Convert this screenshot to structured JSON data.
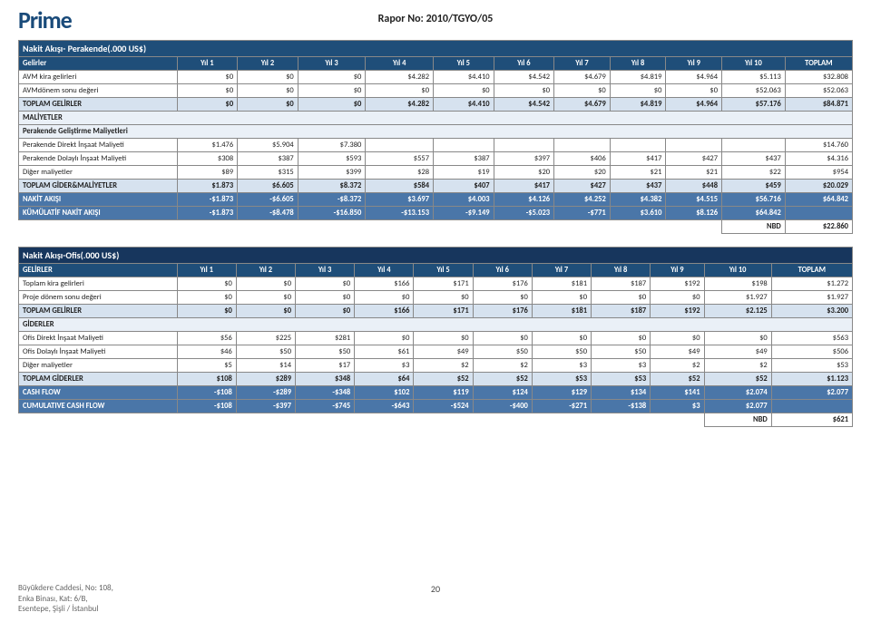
{
  "brand": "Prime",
  "reportNo": "Rapor No: 2010/TGYO/05",
  "pageNum": "20",
  "footer": {
    "line1": "Büyükdere Caddesi, No: 108,",
    "line2": "Enka Binası, Kat: 6/B,",
    "line3": "Esentepe, Şişli / İstanbul"
  },
  "table1": {
    "title": "Nakit Akışı- Perakende(.000 US$)",
    "cols": [
      "Gelirler",
      "Yıl 1",
      "Yıl 2",
      "Yıl 3",
      "Yıl 4",
      "Yıl 5",
      "Yıl 6",
      "Yıl 7",
      "Yıl 8",
      "Yıl 9",
      "Yıl 10",
      "TOPLAM"
    ],
    "rows": [
      {
        "label": "AVM kira gelirleri",
        "vals": [
          "$0",
          "$0",
          "$0",
          "$4.282",
          "$4.410",
          "$4.542",
          "$4.679",
          "$4.819",
          "$4.964",
          "$5.113",
          "$32.808"
        ]
      },
      {
        "label": "AVMdönem sonu değeri",
        "vals": [
          "$0",
          "$0",
          "$0",
          "$0",
          "$0",
          "$0",
          "$0",
          "$0",
          "$0",
          "$52.063",
          "$52.063"
        ]
      }
    ],
    "totalGelir": {
      "label": "TOPLAM GELİRLER",
      "vals": [
        "$0",
        "$0",
        "$0",
        "$4.282",
        "$4.410",
        "$4.542",
        "$4.679",
        "$4.819",
        "$4.964",
        "$57.176",
        "$84.871"
      ]
    },
    "maliyetlerLabel": "MALİYETLER",
    "maliyetSub": "Perakende Geliştirme Maliyetleri",
    "maliyetRows": [
      {
        "label": "Perakende Direkt İnşaat Maliyeti",
        "vals": [
          "$1.476",
          "$5.904",
          "$7.380",
          "",
          "",
          "",
          "",
          "",
          "",
          "",
          "$14.760"
        ]
      },
      {
        "label": "Perakende Dolaylı İnşaat Maliyeti",
        "vals": [
          "$308",
          "$387",
          "$593",
          "$557",
          "$387",
          "$397",
          "$406",
          "$417",
          "$427",
          "$437",
          "$4.316"
        ]
      },
      {
        "label": "Diğer maliyetler",
        "vals": [
          "$89",
          "$315",
          "$399",
          "$28",
          "$19",
          "$20",
          "$20",
          "$21",
          "$21",
          "$22",
          "$954"
        ]
      }
    ],
    "totalGider": {
      "label": "TOPLAM GİDER&MALİYETLER",
      "vals": [
        "$1.873",
        "$6.605",
        "$8.372",
        "$584",
        "$407",
        "$417",
        "$427",
        "$437",
        "$448",
        "$459",
        "$20.029"
      ]
    },
    "nakit": {
      "label": "NAKİT AKIŞI",
      "vals": [
        "-$1.873",
        "-$6.605",
        "-$8.372",
        "$3.697",
        "$4.003",
        "$4.126",
        "$4.252",
        "$4.382",
        "$4.515",
        "$56.716",
        "$64.842"
      ]
    },
    "kumul": {
      "label": "KÜMÜLATİF NAKİT AKIŞI",
      "vals": [
        "-$1.873",
        "-$8.478",
        "-$16.850",
        "-$13.153",
        "-$9.149",
        "-$5.023",
        "-$771",
        "$3.610",
        "$8.126",
        "$64.842",
        ""
      ]
    },
    "nbd": {
      "label": "NBD",
      "val": "$22.860"
    }
  },
  "table2": {
    "title": "Nakit Akışı-Ofis(.000 US$)",
    "cols": [
      "GELİRLER",
      "Yıl 1",
      "Yıl 2",
      "Yıl 3",
      "Yıl 4",
      "Yıl 5",
      "Yıl 6",
      "Yıl 7",
      "Yıl 8",
      "Yıl 9",
      "Yıl 10",
      "TOPLAM"
    ],
    "rows": [
      {
        "label": "Toplam kira gelirleri",
        "vals": [
          "$0",
          "$0",
          "$0",
          "$166",
          "$171",
          "$176",
          "$181",
          "$187",
          "$192",
          "$198",
          "$1.272"
        ]
      },
      {
        "label": "Proje dönem sonu değeri",
        "vals": [
          "$0",
          "$0",
          "$0",
          "$0",
          "$0",
          "$0",
          "$0",
          "$0",
          "$0",
          "$1.927",
          "$1.927"
        ]
      }
    ],
    "totalGelir": {
      "label": "TOPLAM GELİRLER",
      "vals": [
        "$0",
        "$0",
        "$0",
        "$166",
        "$171",
        "$176",
        "$181",
        "$187",
        "$192",
        "$2.125",
        "$3.200"
      ]
    },
    "giderlerLabel": "GİDERLER",
    "giderRows": [
      {
        "label": "Ofis Direkt İnşaat Maliyeti",
        "vals": [
          "$56",
          "$225",
          "$281",
          "$0",
          "$0",
          "$0",
          "$0",
          "$0",
          "$0",
          "$0",
          "$563"
        ]
      },
      {
        "label": "Ofis Dolaylı İnşaat Maliyeti",
        "vals": [
          "$46",
          "$50",
          "$50",
          "$61",
          "$49",
          "$50",
          "$50",
          "$50",
          "$49",
          "$49",
          "$506"
        ]
      },
      {
        "label": "Diğer maliyetler",
        "vals": [
          "$5",
          "$14",
          "$17",
          "$3",
          "$2",
          "$2",
          "$3",
          "$3",
          "$2",
          "$2",
          "$53"
        ]
      }
    ],
    "totalGider": {
      "label": "TOPLAM GİDERLER",
      "vals": [
        "$108",
        "$289",
        "$348",
        "$64",
        "$52",
        "$52",
        "$53",
        "$53",
        "$52",
        "$52",
        "$1.123"
      ]
    },
    "cashflow": {
      "label": "CASH FLOW",
      "vals": [
        "-$108",
        "-$289",
        "-$348",
        "$102",
        "$119",
        "$124",
        "$129",
        "$134",
        "$141",
        "$2.074",
        "$2.077"
      ]
    },
    "cumul": {
      "label": "CUMULATIVE CASH FLOW",
      "vals": [
        "-$108",
        "-$397",
        "-$745",
        "-$643",
        "-$524",
        "-$400",
        "-$271",
        "-$138",
        "$3",
        "$2.077",
        ""
      ]
    },
    "nbd": {
      "label": "NBD",
      "val": "$621"
    }
  }
}
